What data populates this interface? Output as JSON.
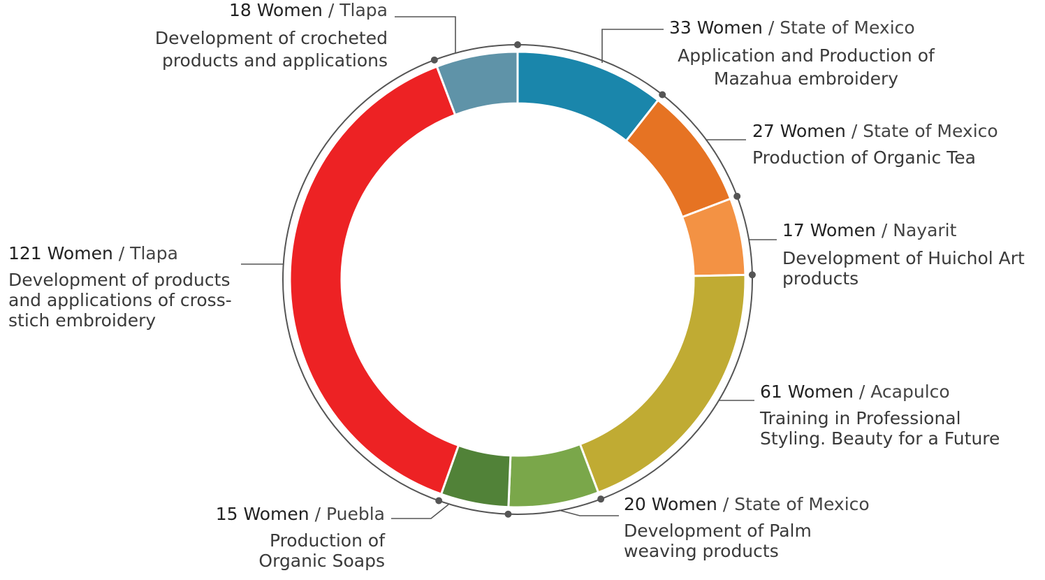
{
  "chart_data": {
    "type": "donut",
    "values": [
      33,
      27,
      17,
      61,
      20,
      15,
      121,
      18
    ],
    "value_labels": [
      "33 Women",
      "27 Women",
      "17 Women",
      "61 Women",
      "20 Women",
      "15 Women",
      "121 Women",
      "18 Women"
    ],
    "places": [
      "/ State of Mexico",
      "/  State of Mexico",
      "/ Nayarit",
      "/ Acapulco",
      "/  State of Mexico",
      "/ Puebla",
      "/ Tlapa",
      "/ Tlapa"
    ],
    "descriptions": [
      [
        "Application and Production of",
        "Mazahua embroidery"
      ],
      [
        "Production of Organic Tea"
      ],
      [
        "Development of Huichol Art",
        "products"
      ],
      [
        "Training in Professional",
        "Styling. Beauty for a Future"
      ],
      [
        "Development of Palm",
        "weaving products"
      ],
      [
        "Production of",
        "Organic Soaps"
      ],
      [
        "Development of products",
        "and applications of cross-",
        "stich embroidery"
      ],
      [
        "Development of crocheted",
        "products and applications"
      ]
    ],
    "colors": [
      "#1a86ab",
      "#e67323",
      "#f39244",
      "#c0ab33",
      "#7aa74a",
      "#518238",
      "#ed2224",
      "#5f93a8"
    ]
  }
}
